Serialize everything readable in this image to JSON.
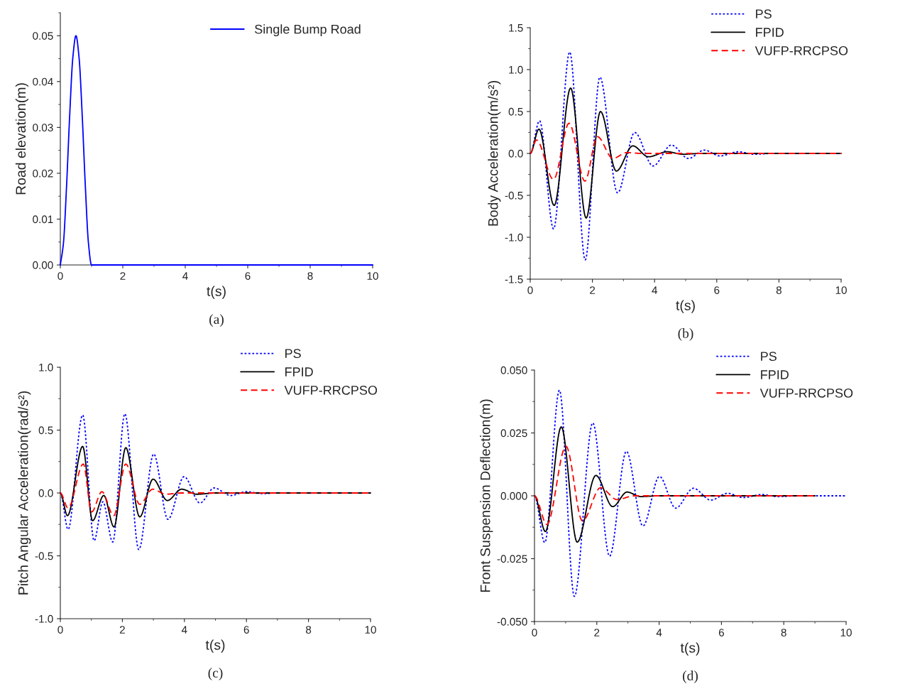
{
  "chart_data": [
    {
      "type": "line",
      "xlabel": "t(s)",
      "ylabel": "Road elevation(m)",
      "annotations": [
        "(a)"
      ],
      "legend": "top right",
      "grid": false,
      "xlim": [
        0,
        10
      ],
      "xticks": [
        0,
        2,
        4,
        6,
        8,
        10
      ],
      "ylim": [
        0,
        0.055
      ],
      "yticks": [
        {
          "value": 0,
          "label": "0.00"
        },
        {
          "value": 0.01,
          "label": "0.01"
        },
        {
          "value": 0.02,
          "label": "0.02"
        },
        {
          "value": 0.03,
          "label": "0.03"
        },
        {
          "value": 0.04,
          "label": "0.04"
        },
        {
          "value": 0.05,
          "label": "0.05"
        }
      ],
      "series": [
        {
          "name": "Single Bump Road",
          "color": "#0000ff",
          "line_style": "solid",
          "x": [
            0,
            0.1,
            0.2,
            0.3,
            0.4,
            0.5,
            0.6,
            0.7,
            0.8,
            0.9,
            1,
            10
          ],
          "values": [
            0,
            0.0048,
            0.0173,
            0.0327,
            0.0452,
            0.05,
            0.0452,
            0.0327,
            0.0173,
            0.0048,
            0,
            0
          ]
        }
      ]
    },
    {
      "type": "line",
      "xlabel": "t(s)",
      "ylabel": "Body Acceleration(m/s²)",
      "annotations": [
        "(b)"
      ],
      "legend": "top right",
      "grid": false,
      "xlim": [
        0,
        10
      ],
      "xticks": [
        0,
        2,
        4,
        6,
        8,
        10
      ],
      "ylim": [
        -1.5,
        1.5
      ],
      "yticks": [
        {
          "value": -1.5,
          "label": "-1.5"
        },
        {
          "value": -1,
          "label": "-1.0"
        },
        {
          "value": -0.5,
          "label": "-0.5"
        },
        {
          "value": 0,
          "label": "0.0"
        },
        {
          "value": 0.5,
          "label": "0.5"
        },
        {
          "value": 1,
          "label": "1.0"
        },
        {
          "value": 1.5,
          "label": "1.5"
        }
      ],
      "series": [
        {
          "name": "PS",
          "color": "#0000ff",
          "line_style": "dotted",
          "x": [
            0,
            0.3,
            0.75,
            1.27,
            1.77,
            2.24,
            2.81,
            3.36,
            3.95,
            4.54,
            5.09,
            5.6,
            6.1,
            6.7,
            7.2,
            7.8,
            10
          ],
          "values": [
            0,
            0.39,
            -0.9,
            1.21,
            -1.27,
            0.91,
            -0.47,
            0.25,
            -0.15,
            0.1,
            -0.06,
            0.04,
            -0.03,
            0.02,
            -0.01,
            0,
            0
          ]
        },
        {
          "name": "FPID",
          "color": "#000000",
          "line_style": "solid",
          "x": [
            0,
            0.28,
            0.77,
            1.3,
            1.8,
            2.26,
            2.77,
            3.3,
            3.8,
            4.41,
            4.9,
            5.5,
            10
          ],
          "values": [
            0,
            0.29,
            -0.62,
            0.78,
            -0.77,
            0.5,
            -0.21,
            0.09,
            -0.04,
            0.02,
            -0.01,
            0,
            0
          ]
        },
        {
          "name": "VUFP-RRCPSO",
          "color": "#ff0000",
          "line_style": "dashed",
          "x": [
            0,
            0.2,
            0.75,
            1.25,
            1.76,
            2.16,
            2.66,
            3.1,
            3.6,
            10
          ],
          "values": [
            0,
            0.16,
            -0.31,
            0.36,
            -0.33,
            0.2,
            -0.06,
            0.01,
            0,
            0
          ]
        }
      ]
    },
    {
      "type": "line",
      "xlabel": "t(s)",
      "ylabel": "Pitch Angular Acceleration(rad/s²)",
      "annotations": [
        "(c)"
      ],
      "legend": "top right",
      "grid": false,
      "xlim": [
        0,
        10
      ],
      "xticks": [
        0,
        2,
        4,
        6,
        8,
        10
      ],
      "ylim": [
        -1,
        1
      ],
      "yticks": [
        {
          "value": -1,
          "label": "-1.0"
        },
        {
          "value": -0.5,
          "label": "-0.5"
        },
        {
          "value": 0,
          "label": "0.0"
        },
        {
          "value": 0.5,
          "label": "0.5"
        },
        {
          "value": 1,
          "label": "1.0"
        }
      ],
      "series": [
        {
          "name": "PS",
          "color": "#0000ff",
          "line_style": "dotted",
          "x": [
            0,
            0.25,
            0.72,
            1.09,
            1.37,
            1.69,
            2.08,
            2.53,
            3.01,
            3.47,
            3.99,
            4.5,
            4.96,
            5.49,
            6.0,
            6.5,
            7.0,
            10
          ],
          "values": [
            0,
            -0.29,
            0.62,
            -0.38,
            -0.07,
            -0.39,
            0.63,
            -0.45,
            0.31,
            -0.21,
            0.13,
            -0.08,
            0.04,
            -0.02,
            0.01,
            -0.005,
            0,
            0
          ]
        },
        {
          "name": "FPID",
          "color": "#000000",
          "line_style": "solid",
          "x": [
            0,
            0.23,
            0.72,
            1.04,
            1.4,
            1.73,
            2.11,
            2.56,
            2.99,
            3.45,
            3.91,
            4.4,
            5.0,
            10
          ],
          "values": [
            0,
            -0.18,
            0.37,
            -0.22,
            -0.02,
            -0.27,
            0.36,
            -0.19,
            0.11,
            -0.06,
            0.03,
            -0.01,
            0,
            0
          ]
        },
        {
          "name": "VUFP-RRCPSO",
          "color": "#ff0000",
          "line_style": "dashed",
          "x": [
            0,
            0.25,
            0.74,
            1.01,
            1.34,
            1.72,
            2.11,
            2.56,
            2.98,
            3.4,
            3.9,
            10
          ],
          "values": [
            0,
            -0.12,
            0.23,
            -0.15,
            0.01,
            -0.18,
            0.23,
            -0.09,
            0.03,
            -0.01,
            0,
            0
          ]
        }
      ]
    },
    {
      "type": "line",
      "xlabel": "t(s)",
      "ylabel": "Front Suspension Deflection(m)",
      "annotations": [
        "(d)"
      ],
      "legend": "top right",
      "grid": false,
      "xlim": [
        0,
        10
      ],
      "xticks": [
        0,
        2,
        4,
        6,
        8,
        10
      ],
      "ylim": [
        -0.05,
        0.05
      ],
      "yticks": [
        {
          "value": -0.05,
          "label": "-0.050"
        },
        {
          "value": -0.025,
          "label": "-0.025"
        },
        {
          "value": 0,
          "label": "0.000"
        },
        {
          "value": 0.025,
          "label": "0.025"
        },
        {
          "value": 0.05,
          "label": "0.050"
        }
      ],
      "series": [
        {
          "name": "PS",
          "color": "#0000ff",
          "line_style": "dotted",
          "x": [
            0,
            0.33,
            0.8,
            1.28,
            1.87,
            2.41,
            2.95,
            3.48,
            4.01,
            4.53,
            5.1,
            5.66,
            6.2,
            6.7,
            7.3,
            7.8,
            8.5,
            10
          ],
          "values": [
            0,
            -0.0186,
            0.042,
            -0.04,
            0.029,
            -0.024,
            0.0177,
            -0.012,
            0.0077,
            -0.0049,
            0.003,
            -0.0017,
            0.001,
            -0.0007,
            0.0005,
            -0.0003,
            0,
            0
          ]
        },
        {
          "name": "FPID",
          "color": "#000000",
          "line_style": "solid",
          "x": [
            0,
            0.35,
            0.86,
            1.37,
            1.97,
            2.51,
            2.97,
            3.4,
            4.0,
            9.0
          ],
          "values": [
            0,
            -0.0142,
            0.0274,
            -0.0184,
            0.0081,
            -0.0043,
            0.0015,
            -0.0003,
            0,
            0
          ]
        },
        {
          "name": "VUFP-RRCPSO",
          "color": "#ff0000",
          "line_style": "dashed",
          "x": [
            0,
            0.4,
            1.01,
            1.54,
            2.12,
            2.65,
            3.2,
            9.0
          ],
          "values": [
            0,
            -0.0114,
            0.0197,
            -0.01,
            0.0032,
            -0.0015,
            0,
            0
          ]
        }
      ]
    }
  ]
}
